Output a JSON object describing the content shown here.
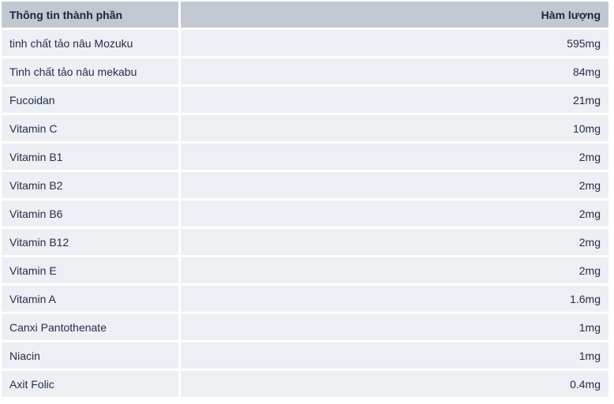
{
  "table": {
    "header": {
      "col1": "Thông tin thành phần",
      "col2": "Hàm lượng"
    },
    "rows": [
      {
        "label": "tinh chất tảo nâu Mozuku",
        "value": "595mg"
      },
      {
        "label": "Tinh chất tảo nâu mekabu",
        "value": "84mg"
      },
      {
        "label": "Fucoidan",
        "value": "21mg"
      },
      {
        "label": "Vitamin C",
        "value": "10mg"
      },
      {
        "label": "Vitamin B1",
        "value": "2mg"
      },
      {
        "label": "Vitamin B2",
        "value": "2mg"
      },
      {
        "label": "Vitamin B6",
        "value": "2mg"
      },
      {
        "label": "Vitamin B12",
        "value": "2mg"
      },
      {
        "label": "Vitamin E",
        "value": "2mg"
      },
      {
        "label": "Vitamin A",
        "value": "1.6mg"
      },
      {
        "label": "Canxi Pantothenate",
        "value": "1mg"
      },
      {
        "label": "Niacin",
        "value": "1mg"
      },
      {
        "label": "Axit Folic",
        "value": "0.4mg"
      }
    ],
    "colors": {
      "header_bg": "#c2c8d2",
      "row_bg": "#eceff3",
      "header_text": "#1e2636",
      "row_text": "#242e49",
      "page_bg": "#ffffff"
    }
  }
}
